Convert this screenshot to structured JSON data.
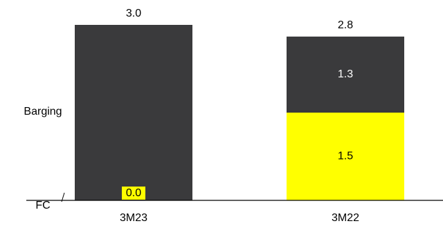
{
  "chart_data": {
    "type": "bar",
    "stacked": true,
    "categories": [
      "3M23",
      "3M22"
    ],
    "series": [
      {
        "name": "FC",
        "values": [
          0.0,
          1.5
        ],
        "color": "#ffff00"
      },
      {
        "name": "Barging",
        "values": [
          3.0,
          1.3
        ],
        "color": "#3a3a3c"
      }
    ],
    "totals": [
      3.0,
      2.8
    ],
    "value_labels": {
      "totals": [
        "3.0",
        "2.8"
      ],
      "FC": [
        "0.0",
        "1.5"
      ],
      "Barging": [
        "",
        "1.3"
      ]
    },
    "legend": [
      "Barging",
      "FC"
    ],
    "ylim": [
      0,
      3.0
    ],
    "grid": false,
    "colors": {
      "text_dark": "#000000",
      "text_light": "#ffffff",
      "axis": "#000000"
    }
  }
}
